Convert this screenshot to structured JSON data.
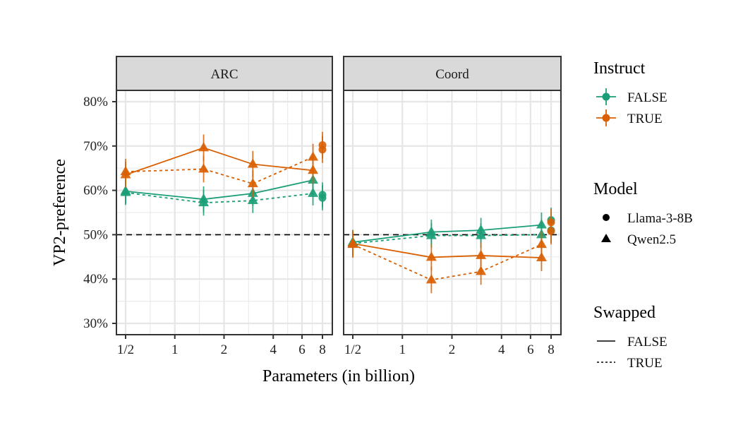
{
  "chart_data": {
    "type": "line",
    "title": "",
    "xlabel": "Parameters (in billion)",
    "ylabel": "VP2-preference",
    "x_scale": "log2",
    "xlim": [
      0.42,
      9.5
    ],
    "ylim": [
      27.5,
      82.5
    ],
    "x_ticks": [
      {
        "value": 0.5,
        "label": "1/2"
      },
      {
        "value": 1,
        "label": "1"
      },
      {
        "value": 2,
        "label": "2"
      },
      {
        "value": 4,
        "label": "4"
      },
      {
        "value": 6,
        "label": "6"
      },
      {
        "value": 8,
        "label": "8"
      }
    ],
    "y_ticks": [
      {
        "value": 30,
        "label": "30%"
      },
      {
        "value": 40,
        "label": "40%"
      },
      {
        "value": 50,
        "label": "50%"
      },
      {
        "value": 60,
        "label": "60%"
      },
      {
        "value": 70,
        "label": "70%"
      },
      {
        "value": 80,
        "label": "80%"
      }
    ],
    "reference_line": {
      "y": 50,
      "style": "dashed",
      "color": "#000000"
    },
    "grid": true,
    "colors": {
      "FALSE": "#1b9e77",
      "TRUE": "#d95f02"
    },
    "panels": [
      {
        "name": "ARC",
        "series": [
          {
            "instruct": "FALSE",
            "model": "Qwen2.5",
            "swapped": "FALSE",
            "x": [
              0.5,
              1.5,
              3,
              7
            ],
            "y": [
              59.8,
              58.0,
              59.3,
              62.3
            ],
            "err": [
              2.8,
              2.9,
              2.8,
              2.6
            ]
          },
          {
            "instruct": "FALSE",
            "model": "Qwen2.5",
            "swapped": "TRUE",
            "x": [
              0.5,
              1.5,
              3,
              7
            ],
            "y": [
              59.5,
              57.2,
              57.7,
              59.3
            ],
            "err": [
              2.8,
              2.9,
              2.8,
              2.7
            ]
          },
          {
            "instruct": "TRUE",
            "model": "Qwen2.5",
            "swapped": "FALSE",
            "x": [
              0.5,
              1.5,
              3,
              7
            ],
            "y": [
              63.5,
              69.6,
              65.9,
              64.5
            ],
            "err": [
              2.9,
              3.0,
              3.0,
              3.0
            ]
          },
          {
            "instruct": "TRUE",
            "model": "Qwen2.5",
            "swapped": "TRUE",
            "x": [
              0.5,
              1.5,
              3,
              7
            ],
            "y": [
              64.2,
              64.8,
              61.5,
              67.5
            ],
            "err": [
              2.9,
              3.0,
              3.0,
              3.0
            ]
          },
          {
            "instruct": "FALSE",
            "model": "Llama-3-8B",
            "swapped": "FALSE",
            "x": [
              8
            ],
            "y": [
              59.0
            ],
            "err": [
              2.8
            ]
          },
          {
            "instruct": "FALSE",
            "model": "Llama-3-8B",
            "swapped": "TRUE",
            "x": [
              8
            ],
            "y": [
              58.3
            ],
            "err": [
              2.8
            ]
          },
          {
            "instruct": "TRUE",
            "model": "Llama-3-8B",
            "swapped": "FALSE",
            "x": [
              8
            ],
            "y": [
              70.2
            ],
            "err": [
              3.0
            ]
          },
          {
            "instruct": "TRUE",
            "model": "Llama-3-8B",
            "swapped": "TRUE",
            "x": [
              8
            ],
            "y": [
              69.2
            ],
            "err": [
              3.0
            ]
          }
        ]
      },
      {
        "name": "Coord",
        "series": [
          {
            "instruct": "FALSE",
            "model": "Qwen2.5",
            "swapped": "FALSE",
            "x": [
              0.5,
              1.5,
              3,
              7
            ],
            "y": [
              48.3,
              50.6,
              51.0,
              52.2
            ],
            "err": [
              2.8,
              2.8,
              2.8,
              2.8
            ]
          },
          {
            "instruct": "FALSE",
            "model": "Qwen2.5",
            "swapped": "TRUE",
            "x": [
              0.5,
              1.5,
              3,
              7
            ],
            "y": [
              48.0,
              49.8,
              49.8,
              50.0
            ],
            "err": [
              2.8,
              2.8,
              2.8,
              2.8
            ]
          },
          {
            "instruct": "TRUE",
            "model": "Qwen2.5",
            "swapped": "FALSE",
            "x": [
              0.5,
              1.5,
              3,
              7
            ],
            "y": [
              48.0,
              44.9,
              45.3,
              44.8
            ],
            "err": [
              3.0,
              3.0,
              3.0,
              3.0
            ]
          },
          {
            "instruct": "TRUE",
            "model": "Qwen2.5",
            "swapped": "TRUE",
            "x": [
              0.5,
              1.5,
              3,
              7
            ],
            "y": [
              47.8,
              39.8,
              41.7,
              47.8
            ],
            "err": [
              3.0,
              3.0,
              3.0,
              3.0
            ]
          },
          {
            "instruct": "FALSE",
            "model": "Llama-3-8B",
            "swapped": "FALSE",
            "x": [
              8
            ],
            "y": [
              53.3
            ],
            "err": [
              2.8
            ]
          },
          {
            "instruct": "FALSE",
            "model": "Llama-3-8B",
            "swapped": "TRUE",
            "x": [
              8
            ],
            "y": [
              51.0
            ],
            "err": [
              2.8
            ]
          },
          {
            "instruct": "TRUE",
            "model": "Llama-3-8B",
            "swapped": "FALSE",
            "x": [
              8
            ],
            "y": [
              52.8
            ],
            "err": [
              3.0
            ]
          },
          {
            "instruct": "TRUE",
            "model": "Llama-3-8B",
            "swapped": "TRUE",
            "x": [
              8
            ],
            "y": [
              50.8
            ],
            "err": [
              3.0
            ]
          }
        ]
      }
    ],
    "legends": [
      {
        "title": "Instruct",
        "type": "color",
        "entries": [
          {
            "label": "FALSE",
            "key": "FALSE"
          },
          {
            "label": "TRUE",
            "key": "TRUE"
          }
        ]
      },
      {
        "title": "Model",
        "type": "shape",
        "entries": [
          {
            "label": "Llama-3-8B",
            "shape": "circle"
          },
          {
            "label": "Qwen2.5",
            "shape": "triangle"
          }
        ]
      },
      {
        "title": "Swapped",
        "type": "linetype",
        "entries": [
          {
            "label": "FALSE",
            "linetype": "solid"
          },
          {
            "label": "TRUE",
            "linetype": "dotted"
          }
        ]
      }
    ],
    "legend_position": "right"
  }
}
